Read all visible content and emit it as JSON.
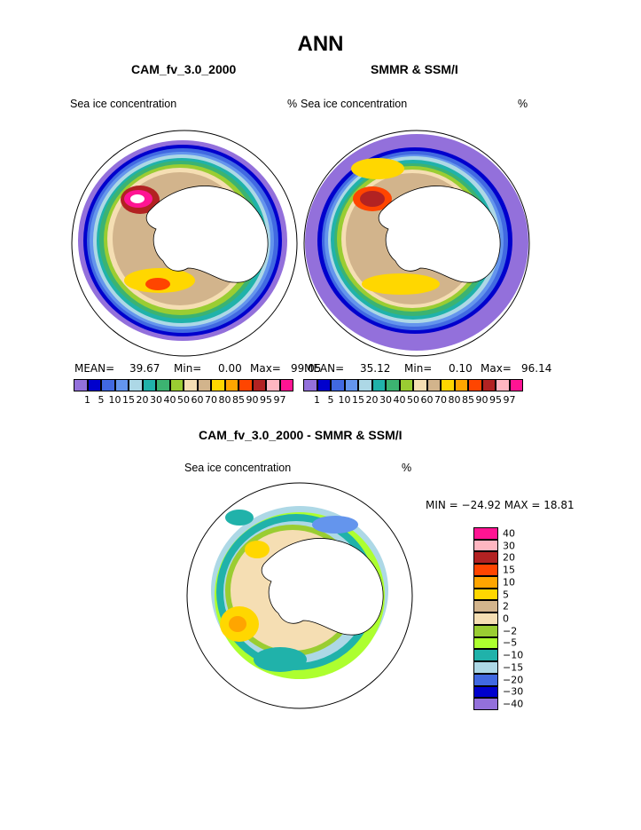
{
  "page_title": "ANN",
  "panels": [
    {
      "title": "CAM_fv_3.0_2000",
      "variable": "Sea ice concentration",
      "units": "%",
      "stats": {
        "mean_label": "MEAN=",
        "mean": "39.67",
        "min_label": "Min=",
        "min": "0.00",
        "max_label": "Max=",
        "max": "99.05"
      }
    },
    {
      "title": "SMMR & SSM/I",
      "variable": "Sea ice concentration",
      "units": "%",
      "stats": {
        "mean_label": "MEAN=",
        "mean": "35.12",
        "min_label": "Min=",
        "min": "0.10",
        "max_label": "Max=",
        "max": "96.14"
      }
    }
  ],
  "abs_levels": [
    "1",
    "5",
    "10",
    "15",
    "20",
    "30",
    "40",
    "50",
    "60",
    "70",
    "80",
    "85",
    "90",
    "95",
    "97"
  ],
  "abs_colors": [
    "#9370db",
    "#0000cd",
    "#4169e1",
    "#6495ed",
    "#add8e6",
    "#20b2aa",
    "#3cb371",
    "#9acd32",
    "#f5deb3",
    "#d2b48c",
    "#ffd700",
    "#ffa500",
    "#ff4500",
    "#b22222",
    "#ffb6c1",
    "#ff1493"
  ],
  "diff": {
    "title": "CAM_fv_3.0_2000 - SMMR & SSM/I",
    "variable": "Sea ice concentration",
    "units": "%",
    "minmax_text": "MIN = −24.92  MAX =   18.81",
    "levels": [
      "40",
      "30",
      "20",
      "15",
      "10",
      "5",
      "2",
      "0",
      "−2",
      "−5",
      "−10",
      "−15",
      "−20",
      "−30",
      "−40"
    ],
    "colors": [
      "#ff1493",
      "#ffb6c1",
      "#b22222",
      "#ff4500",
      "#ffa500",
      "#ffd700",
      "#d2b48c",
      "#f5deb3",
      "#9acd32",
      "#adff2f",
      "#20b2aa",
      "#add8e6",
      "#4169e1",
      "#0000cd",
      "#9370db"
    ]
  }
}
